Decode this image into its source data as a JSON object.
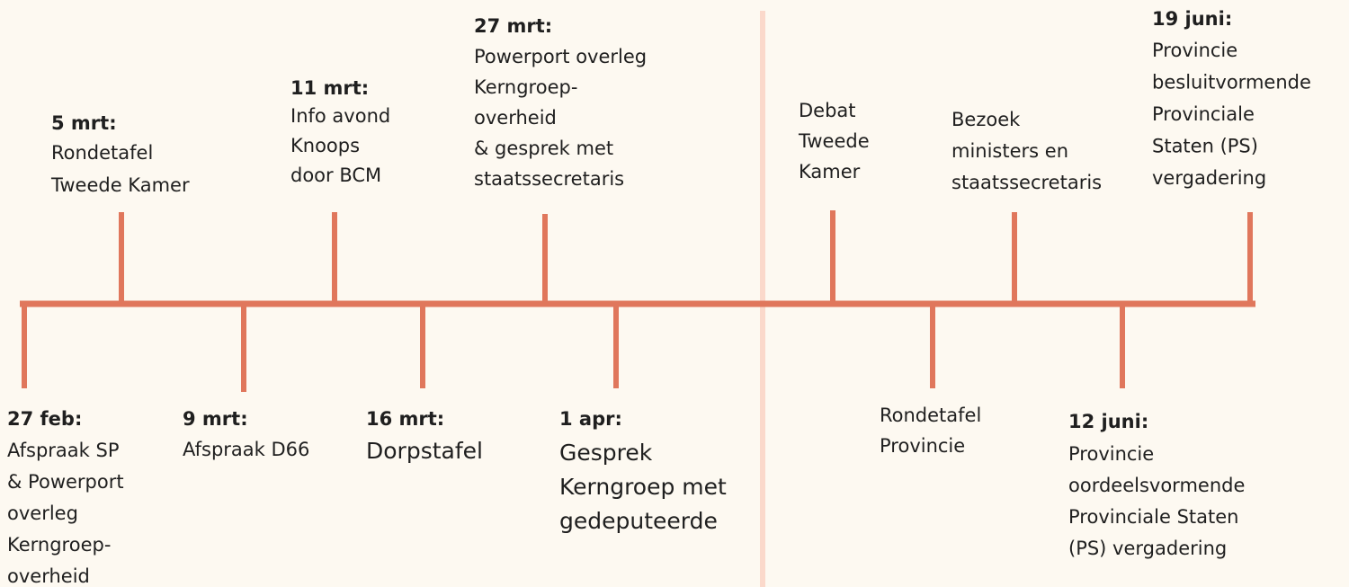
{
  "events": [
    {
      "date": "27 feb:",
      "lines": [
        "Afspraak SP",
        "& Powerport",
        "overleg",
        "Kerngroep-",
        "overheid"
      ]
    },
    {
      "date": "5 mrt:",
      "lines": [
        "Rondetafel",
        "Tweede Kamer"
      ]
    },
    {
      "date": "9 mrt:",
      "lines": [
        "Afspraak D66"
      ]
    },
    {
      "date": "11 mrt:",
      "lines": [
        "Info avond",
        "Knoops",
        "door BCM"
      ]
    },
    {
      "date": "16 mrt:",
      "lines": [
        "Dorpstafel"
      ]
    },
    {
      "date": "27 mrt:",
      "lines": [
        "Powerport overleg",
        "Kerngroep-",
        "overheid",
        "& gesprek met",
        "staatssecretaris"
      ]
    },
    {
      "date": "1 apr:",
      "lines": [
        "Gesprek",
        "Kerngroep met",
        "gedeputeerde"
      ]
    },
    {
      "lines": [
        "Debat",
        "Tweede",
        "Kamer"
      ]
    },
    {
      "lines": [
        "Rondetafel",
        "Provincie"
      ]
    },
    {
      "lines": [
        "Bezoek",
        "ministers en",
        "staatssecretaris"
      ]
    },
    {
      "date": "12 juni:",
      "lines": [
        "Provincie",
        "oordeelsvormende",
        "Provinciale Staten",
        "(PS) vergadering"
      ]
    },
    {
      "date": "19 juni:",
      "lines": [
        "Provincie",
        "besluitvormende",
        "Provinciale",
        "Staten (PS)",
        "vergadering"
      ]
    }
  ]
}
